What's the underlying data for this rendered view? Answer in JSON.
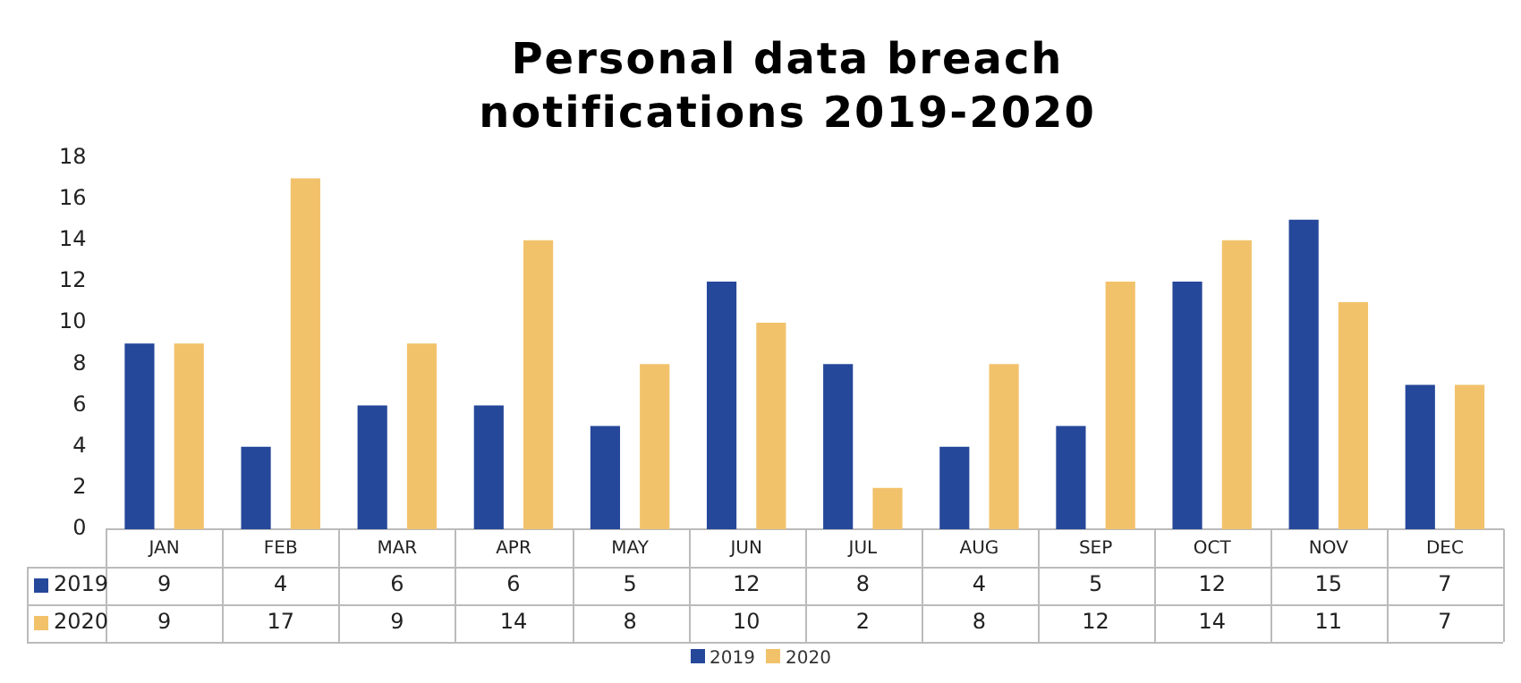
{
  "chart_data": {
    "type": "bar",
    "title": "Personal data breach notifications 2019-2020",
    "categories": [
      "JAN",
      "FEB",
      "MAR",
      "APR",
      "MAY",
      "JUN",
      "JUL",
      "AUG",
      "SEP",
      "OCT",
      "NOV",
      "DEC"
    ],
    "series": [
      {
        "name": "2019",
        "color": "#26489a",
        "values": [
          9,
          4,
          6,
          6,
          5,
          12,
          8,
          4,
          5,
          12,
          15,
          7
        ]
      },
      {
        "name": "2020",
        "color": "#f2c26b",
        "values": [
          9,
          17,
          9,
          14,
          8,
          10,
          2,
          8,
          12,
          14,
          11,
          7
        ]
      }
    ],
    "ylim": [
      0,
      18
    ],
    "yticks": [
      0,
      2,
      4,
      6,
      8,
      10,
      12,
      14,
      16,
      18
    ],
    "grid": false,
    "legend": "bottom",
    "data_labels": true
  }
}
